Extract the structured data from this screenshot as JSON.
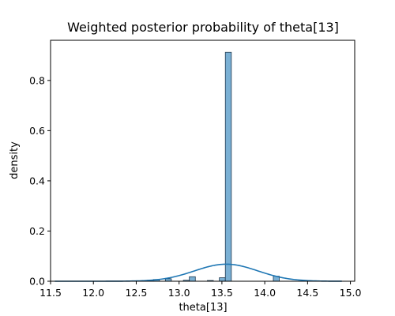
{
  "chart_data": {
    "type": "bar",
    "title": "Weighted posterior probability of theta[13]",
    "xlabel": "theta[13]",
    "ylabel": "density",
    "xlim": [
      11.5,
      15.05
    ],
    "ylim": [
      0,
      0.96
    ],
    "x_ticks": [
      11.5,
      12.0,
      12.5,
      13.0,
      13.5,
      14.0,
      14.5,
      15.0
    ],
    "x_tick_labels": [
      "11.5",
      "12.0",
      "12.5",
      "13.0",
      "13.5",
      "14.0",
      "14.5",
      "15.0"
    ],
    "y_ticks": [
      0,
      0.2,
      0.4,
      0.6,
      0.8
    ],
    "y_tick_labels": [
      "0.0",
      "0.2",
      "0.4",
      "0.6",
      "0.8"
    ],
    "grid": false,
    "legend": "none",
    "bar_color": "#7ab0d4",
    "bar_edge_color": "#1f3a50",
    "kde_color": "#1f77b4",
    "histogram_bins": [
      {
        "x0": 12.63,
        "x1": 12.7,
        "density": 0.004
      },
      {
        "x0": 12.7,
        "x1": 12.77,
        "density": 0.007
      },
      {
        "x0": 12.84,
        "x1": 12.91,
        "density": 0.01
      },
      {
        "x0": 13.05,
        "x1": 13.12,
        "density": 0.004
      },
      {
        "x0": 13.12,
        "x1": 13.19,
        "density": 0.018
      },
      {
        "x0": 13.33,
        "x1": 13.4,
        "density": 0.003
      },
      {
        "x0": 13.47,
        "x1": 13.54,
        "density": 0.014
      },
      {
        "x0": 13.54,
        "x1": 13.61,
        "density": 0.912
      },
      {
        "x0": 14.1,
        "x1": 14.17,
        "density": 0.02
      }
    ],
    "kde": {
      "type": "gaussian",
      "mean": 13.55,
      "sd": 0.37,
      "peak_density": 0.068,
      "x_range": [
        11.55,
        14.9
      ]
    }
  }
}
